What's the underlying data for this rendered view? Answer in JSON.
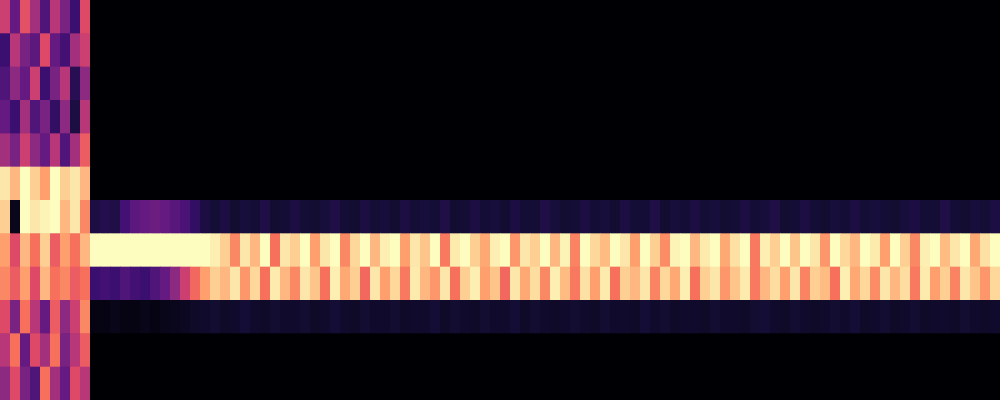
{
  "chart_data": {
    "type": "heatmap",
    "tick_labels": false,
    "cells": [
      [
        0.55,
        0.3,
        0.62,
        0.45,
        0.25,
        0.5,
        0.35,
        0.2,
        0.6,
        0,
        0,
        0,
        0,
        0,
        0,
        0,
        0,
        0,
        0,
        0,
        0,
        0,
        0,
        0,
        0,
        0,
        0,
        0,
        0,
        0,
        0,
        0,
        0,
        0,
        0,
        0,
        0,
        0,
        0,
        0,
        0,
        0,
        0,
        0,
        0,
        0,
        0,
        0,
        0,
        0,
        0,
        0,
        0,
        0,
        0,
        0,
        0,
        0,
        0,
        0,
        0,
        0,
        0,
        0,
        0,
        0,
        0,
        0,
        0,
        0,
        0,
        0,
        0,
        0,
        0,
        0,
        0,
        0,
        0,
        0,
        0,
        0,
        0,
        0,
        0,
        0,
        0,
        0,
        0,
        0,
        0,
        0,
        0,
        0,
        0,
        0,
        0,
        0,
        0,
        0
      ],
      [
        0.2,
        0.5,
        0.35,
        0.28,
        0.6,
        0.3,
        0.22,
        0.45,
        0.55,
        0,
        0,
        0,
        0,
        0,
        0,
        0,
        0,
        0,
        0,
        0,
        0,
        0,
        0,
        0,
        0,
        0,
        0,
        0,
        0,
        0,
        0,
        0,
        0,
        0,
        0,
        0,
        0,
        0,
        0,
        0,
        0,
        0,
        0,
        0,
        0,
        0,
        0,
        0,
        0,
        0,
        0,
        0,
        0,
        0,
        0,
        0,
        0,
        0,
        0,
        0,
        0,
        0,
        0,
        0,
        0,
        0,
        0,
        0,
        0,
        0,
        0,
        0,
        0,
        0,
        0,
        0,
        0,
        0,
        0,
        0,
        0,
        0,
        0,
        0,
        0,
        0,
        0,
        0,
        0,
        0,
        0,
        0,
        0,
        0,
        0,
        0,
        0,
        0,
        0,
        0
      ],
      [
        0.25,
        0.4,
        0.3,
        0.55,
        0.2,
        0.35,
        0.5,
        0.15,
        0.4,
        0,
        0,
        0,
        0,
        0,
        0,
        0,
        0,
        0,
        0,
        0,
        0,
        0,
        0,
        0,
        0,
        0,
        0,
        0,
        0,
        0,
        0,
        0,
        0,
        0,
        0,
        0,
        0,
        0,
        0,
        0,
        0,
        0,
        0,
        0,
        0,
        0,
        0,
        0,
        0,
        0,
        0,
        0,
        0,
        0,
        0,
        0,
        0,
        0,
        0,
        0,
        0,
        0,
        0,
        0,
        0,
        0,
        0,
        0,
        0,
        0,
        0,
        0,
        0,
        0,
        0,
        0,
        0,
        0,
        0,
        0,
        0,
        0,
        0,
        0,
        0,
        0,
        0,
        0,
        0,
        0,
        0,
        0,
        0,
        0,
        0,
        0,
        0,
        0,
        0,
        0
      ],
      [
        0.3,
        0.2,
        0.45,
        0.25,
        0.35,
        0.18,
        0.4,
        0.12,
        0.5,
        0,
        0,
        0,
        0,
        0,
        0,
        0,
        0,
        0,
        0,
        0,
        0,
        0,
        0,
        0,
        0,
        0,
        0,
        0,
        0,
        0,
        0,
        0,
        0,
        0,
        0,
        0,
        0,
        0,
        0,
        0,
        0,
        0,
        0,
        0,
        0,
        0,
        0,
        0,
        0,
        0,
        0,
        0,
        0,
        0,
        0,
        0,
        0,
        0,
        0,
        0,
        0,
        0,
        0,
        0,
        0,
        0,
        0,
        0,
        0,
        0,
        0,
        0,
        0,
        0,
        0,
        0,
        0,
        0,
        0,
        0,
        0,
        0,
        0,
        0,
        0,
        0,
        0,
        0,
        0,
        0,
        0,
        0,
        0,
        0,
        0,
        0,
        0,
        0,
        0,
        0
      ],
      [
        0.45,
        0.35,
        0.55,
        0.4,
        0.3,
        0.5,
        0.25,
        0.45,
        0.65,
        0,
        0,
        0,
        0,
        0,
        0,
        0,
        0,
        0,
        0,
        0,
        0,
        0,
        0,
        0,
        0,
        0,
        0,
        0,
        0,
        0,
        0,
        0,
        0,
        0,
        0,
        0,
        0,
        0,
        0,
        0,
        0,
        0,
        0,
        0,
        0,
        0,
        0,
        0,
        0,
        0,
        0,
        0,
        0,
        0,
        0,
        0,
        0,
        0,
        0,
        0,
        0,
        0,
        0,
        0,
        0,
        0,
        0,
        0,
        0,
        0,
        0,
        0,
        0,
        0,
        0,
        0,
        0,
        0,
        0,
        0,
        0,
        0,
        0,
        0,
        0,
        0,
        0,
        0,
        0,
        0,
        0,
        0,
        0,
        0,
        0,
        0,
        0,
        0,
        0,
        0
      ],
      [
        0.95,
        0.85,
        1,
        0.9,
        0.8,
        1,
        0.9,
        0.95,
        0.85,
        0,
        0,
        0,
        0,
        0,
        0,
        0,
        0,
        0,
        0,
        0,
        0,
        0,
        0,
        0,
        0,
        0,
        0,
        0,
        0,
        0,
        0,
        0,
        0,
        0,
        0,
        0,
        0,
        0,
        0,
        0,
        0,
        0,
        0,
        0,
        0,
        0,
        0,
        0,
        0,
        0,
        0,
        0,
        0,
        0,
        0,
        0,
        0,
        0,
        0,
        0,
        0,
        0,
        0,
        0,
        0,
        0,
        0,
        0,
        0,
        0,
        0,
        0,
        0,
        0,
        0,
        0,
        0,
        0,
        0,
        0,
        0,
        0,
        0,
        0,
        0,
        0,
        0,
        0,
        0,
        0,
        0,
        0,
        0,
        0,
        0,
        0,
        0,
        0,
        0,
        0
      ],
      [
        0.9,
        0.05,
        1,
        0.95,
        0.98,
        1,
        0.85,
        0.95,
        0.75,
        0.12,
        0.14,
        0.13,
        0.22,
        0.28,
        0.3,
        0.32,
        0.3,
        0.27,
        0.24,
        0.18,
        0.12,
        0.1,
        0.12,
        0.09,
        0.11,
        0.1,
        0.13,
        0.09,
        0.1,
        0.12,
        0.1,
        0.09,
        0.11,
        0.13,
        0.1,
        0.09,
        0.12,
        0.1,
        0.11,
        0.09,
        0.12,
        0.1,
        0.11,
        0.1,
        0.13,
        0.09,
        0.1,
        0.12,
        0.1,
        0.11,
        0.09,
        0.12,
        0.1,
        0.1,
        0.13,
        0.11,
        0.09,
        0.1,
        0.12,
        0.1,
        0.11,
        0.09,
        0.12,
        0.1,
        0.1,
        0.13,
        0.09,
        0.11,
        0.1,
        0.12,
        0.1,
        0.11,
        0.09,
        0.1,
        0.12,
        0.1,
        0.11,
        0.13,
        0.09,
        0.1,
        0.12,
        0.1,
        0.09,
        0.11,
        0.1,
        0.12,
        0.1,
        0.11,
        0.1,
        0.09,
        0.11,
        0.12,
        0.1,
        0.1,
        0.13,
        0.1,
        0.09,
        0.11,
        0.1,
        0.12
      ],
      [
        0.8,
        0.6,
        0.85,
        0.7,
        0.9,
        0.65,
        0.8,
        0.7,
        0.85,
        1,
        1,
        1,
        1,
        1,
        1,
        1,
        1,
        1,
        1,
        1,
        1,
        0.97,
        0.9,
        0.75,
        0.95,
        0.85,
        1,
        0.7,
        0.95,
        0.9,
        1,
        0.8,
        0.95,
        1,
        0.75,
        0.92,
        1,
        0.85,
        0.97,
        1,
        0.8,
        0.95,
        0.88,
        1,
        0.72,
        0.96,
        1,
        0.9,
        0.82,
        0.97,
        1,
        0.78,
        0.95,
        0.9,
        1,
        0.85,
        0.98,
        0.74,
        1,
        0.92,
        0.86,
        1,
        0.95,
        0.8,
        1,
        0.9,
        0.76,
        0.98,
        1,
        0.85,
        0.96,
        1,
        0.82,
        0.94,
        1,
        0.72,
        0.97,
        0.9,
        1,
        0.88,
        1,
        0.95,
        0.78,
        1,
        0.92,
        0.85,
        1,
        0.96,
        0.8,
        1,
        0.9,
        0.75,
        0.97,
        1,
        0.86,
        0.95,
        1,
        0.82,
        0.94,
        1
      ],
      [
        0.75,
        0.65,
        0.8,
        0.6,
        0.85,
        0.7,
        0.75,
        0.65,
        0.7,
        0.2,
        0.22,
        0.2,
        0.25,
        0.22,
        0.2,
        0.25,
        0.3,
        0.4,
        0.55,
        0.68,
        0.8,
        0.9,
        0.85,
        0.95,
        0.78,
        0.92,
        0.7,
        0.96,
        0.85,
        0.75,
        0.95,
        0.88,
        0.7,
        0.97,
        0.82,
        0.9,
        0.68,
        0.95,
        0.8,
        0.92,
        0.72,
        0.96,
        0.85,
        0.78,
        0.95,
        0.7,
        0.9,
        0.97,
        0.8,
        0.88,
        0.68,
        0.95,
        0.82,
        0.93,
        0.75,
        0.97,
        0.86,
        0.72,
        0.94,
        0.8,
        0.96,
        0.7,
        0.9,
        0.85,
        0.95,
        0.74,
        0.92,
        0.82,
        0.97,
        0.7,
        0.9,
        0.95,
        0.78,
        0.88,
        0.96,
        0.72,
        0.85,
        0.93,
        0.8,
        0.95,
        0.74,
        0.9,
        0.86,
        0.7,
        0.97,
        0.82,
        0.92,
        0.76,
        0.95,
        0.85,
        0.93,
        0.72,
        0.96,
        0.8,
        0.9,
        0.74,
        0.95,
        0.88,
        0.78,
        0.92
      ],
      [
        0.6,
        0.35,
        0.7,
        0.5,
        0.3,
        0.65,
        0.4,
        0.55,
        0.75,
        0.03,
        0.03,
        0.04,
        0.03,
        0.03,
        0.04,
        0.03,
        0.04,
        0.05,
        0.06,
        0.07,
        0.08,
        0.09,
        0.07,
        0.08,
        0.1,
        0.08,
        0.07,
        0.09,
        0.08,
        0.08,
        0.09,
        0.07,
        0.08,
        0.1,
        0.08,
        0.07,
        0.09,
        0.08,
        0.08,
        0.09,
        0.07,
        0.08,
        0.08,
        0.1,
        0.07,
        0.09,
        0.08,
        0.07,
        0.09,
        0.08,
        0.08,
        0.1,
        0.07,
        0.09,
        0.08,
        0.07,
        0.08,
        0.09,
        0.08,
        0.07,
        0.09,
        0.08,
        0.08,
        0.07,
        0.1,
        0.08,
        0.09,
        0.07,
        0.08,
        0.08,
        0.07,
        0.09,
        0.08,
        0.08,
        0.07,
        0.09,
        0.1,
        0.08,
        0.07,
        0.09,
        0.08,
        0.07,
        0.08,
        0.09,
        0.08,
        0.1,
        0.07,
        0.08,
        0.09,
        0.07,
        0.08,
        0.09,
        0.07,
        0.08,
        0.08,
        0.07,
        0.09,
        0.08,
        0.07,
        0.08
      ],
      [
        0.5,
        0.7,
        0.3,
        0.6,
        0.45,
        0.7,
        0.35,
        0.5,
        0.65,
        0,
        0,
        0,
        0,
        0,
        0,
        0,
        0,
        0,
        0,
        0,
        0,
        0,
        0,
        0,
        0,
        0,
        0,
        0,
        0,
        0,
        0,
        0,
        0,
        0,
        0,
        0,
        0,
        0,
        0,
        0,
        0,
        0,
        0,
        0,
        0,
        0,
        0,
        0,
        0,
        0,
        0,
        0,
        0,
        0,
        0,
        0,
        0,
        0,
        0,
        0,
        0,
        0,
        0,
        0,
        0,
        0,
        0,
        0,
        0,
        0,
        0,
        0,
        0,
        0,
        0,
        0,
        0,
        0,
        0,
        0,
        0,
        0,
        0,
        0,
        0,
        0,
        0,
        0,
        0,
        0,
        0,
        0,
        0,
        0,
        0,
        0,
        0,
        0,
        0,
        0
      ],
      [
        0.4,
        0.6,
        0.35,
        0.25,
        0.7,
        0.45,
        0.3,
        0.6,
        0.5,
        0,
        0,
        0,
        0,
        0,
        0,
        0,
        0,
        0,
        0,
        0,
        0,
        0,
        0,
        0,
        0,
        0,
        0,
        0,
        0,
        0,
        0,
        0,
        0,
        0,
        0,
        0,
        0,
        0,
        0,
        0,
        0,
        0,
        0,
        0,
        0,
        0,
        0,
        0,
        0,
        0,
        0,
        0,
        0,
        0,
        0,
        0,
        0,
        0,
        0,
        0,
        0,
        0,
        0,
        0,
        0,
        0,
        0,
        0,
        0,
        0,
        0,
        0,
        0,
        0,
        0,
        0,
        0,
        0,
        0,
        0,
        0,
        0,
        0,
        0,
        0,
        0,
        0,
        0,
        0,
        0,
        0,
        0,
        0,
        0,
        0,
        0,
        0,
        0,
        0,
        0
      ]
    ]
  }
}
